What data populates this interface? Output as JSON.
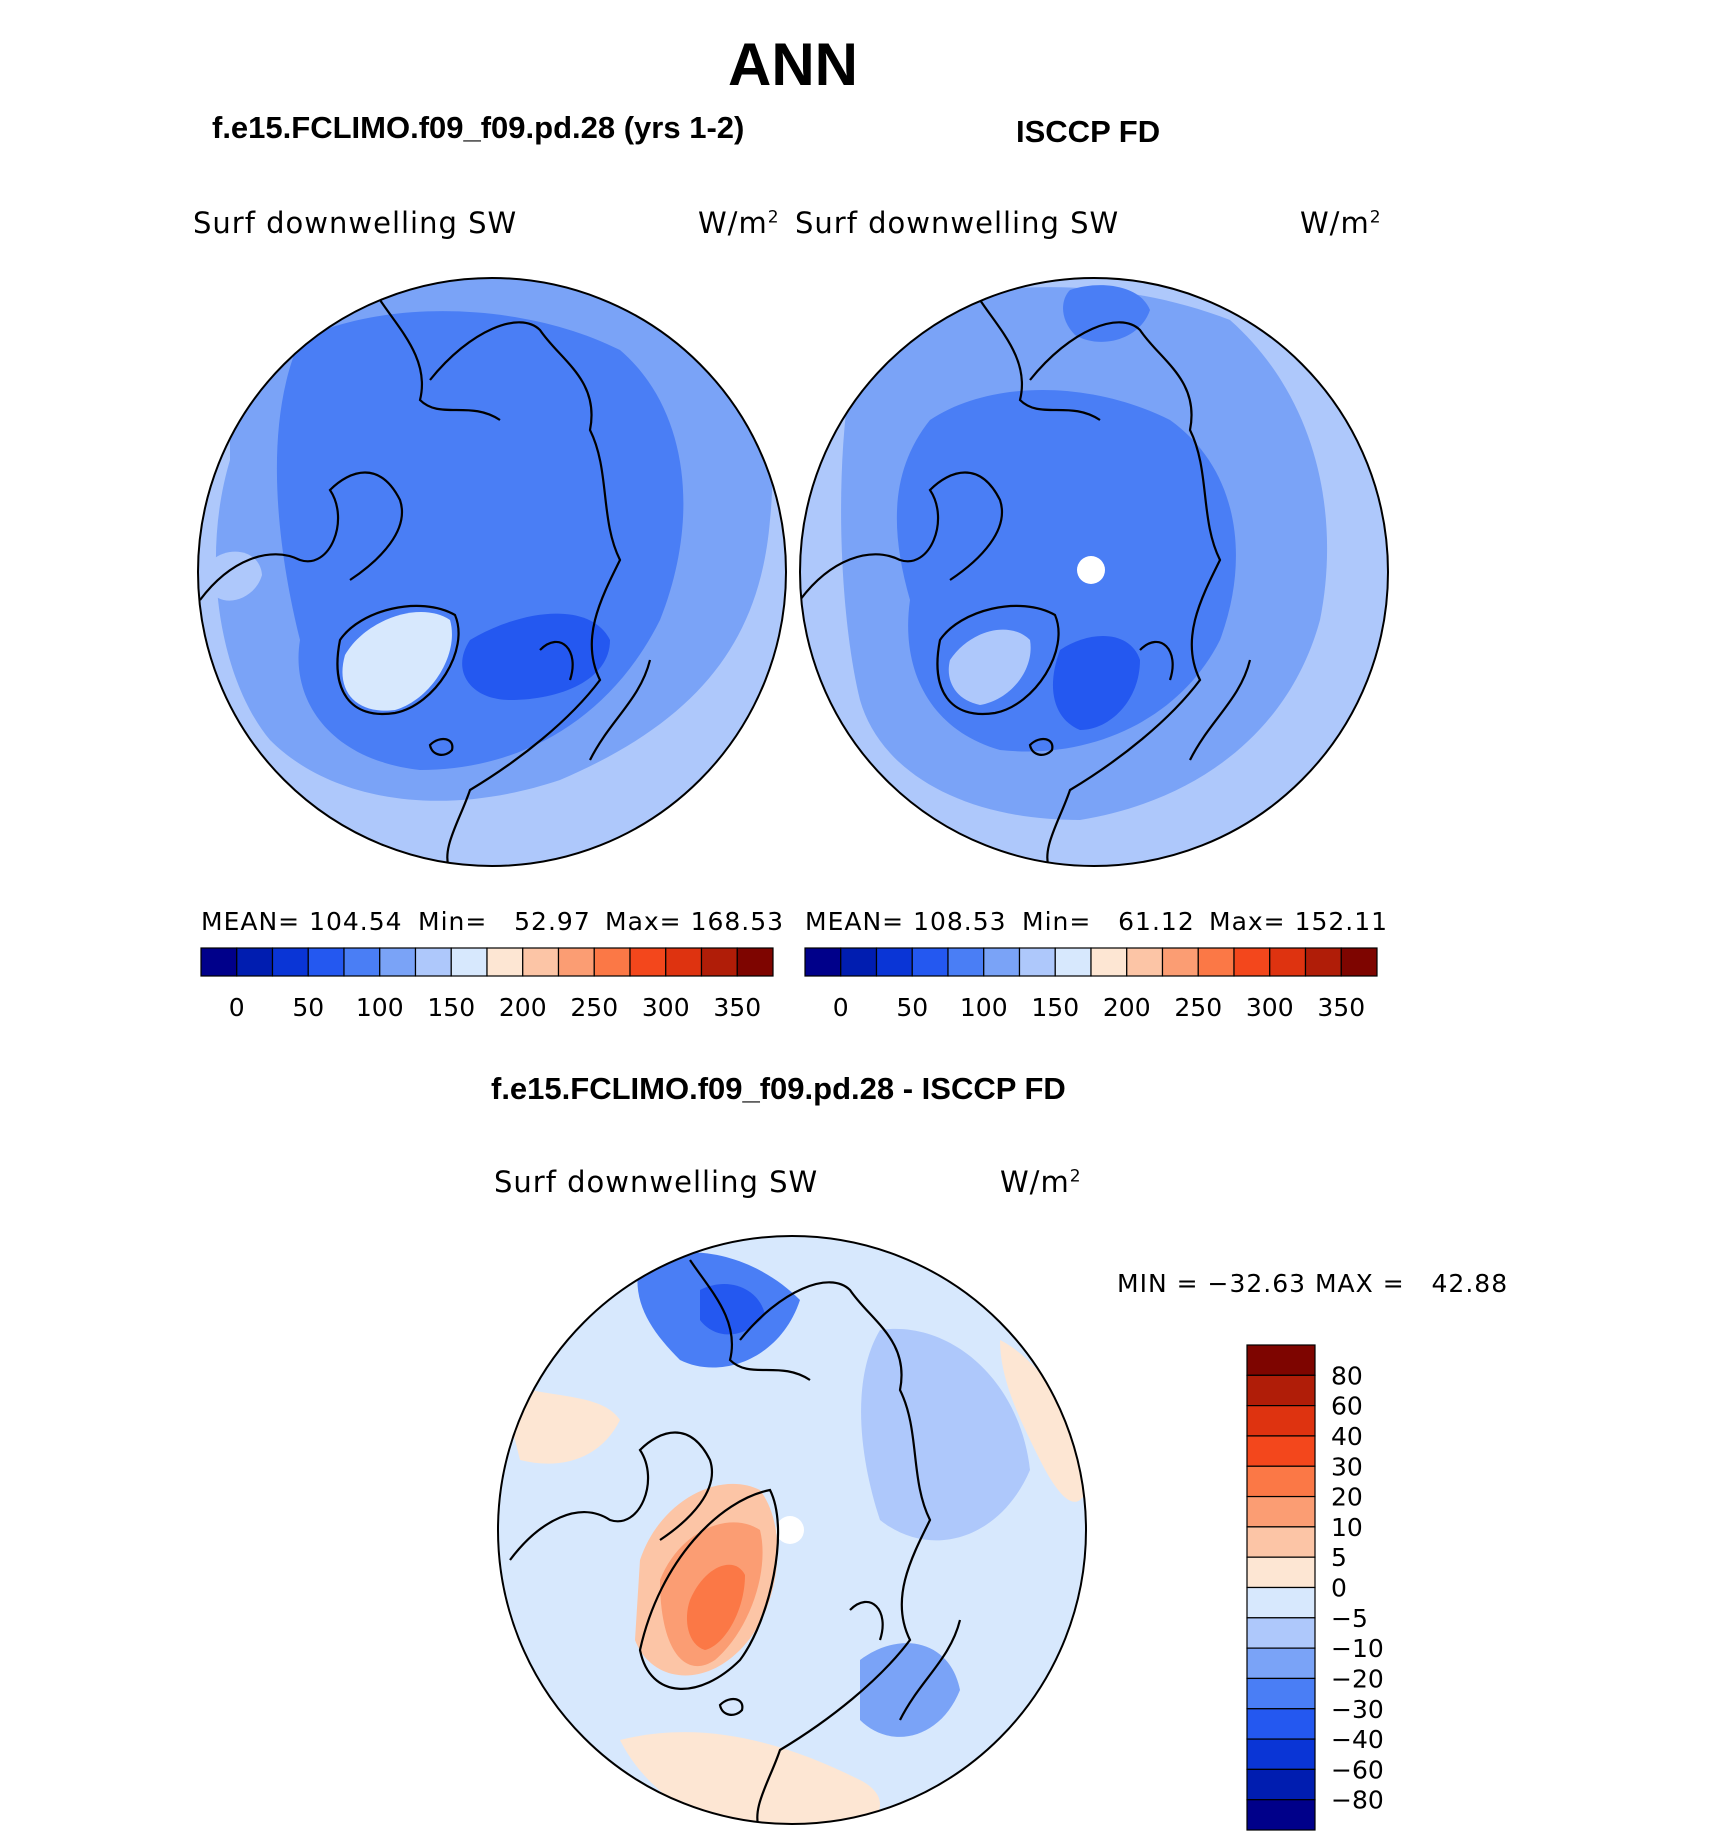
{
  "title": "ANN",
  "colors": {
    "d1": "#00008a",
    "d2": "#001db0",
    "d3": "#0a35d6",
    "d4": "#2458f0",
    "d5": "#4a7ef5",
    "d6": "#7aa3f7",
    "d7": "#aec8fb",
    "d8": "#d7e8fd",
    "w1": "#fde6d3",
    "w2": "#fcc5a6",
    "w3": "#fb9d73",
    "w4": "#fb7846",
    "w5": "#f3471c",
    "w6": "#de3310",
    "w7": "#b01d08",
    "w8": "#7e0500",
    "missing": "#ffffff"
  },
  "panels": [
    {
      "heading": "f.e15.FCLIMO.f09_f09.pd.28 (yrs 1-2)",
      "variable": "Surf downwelling SW",
      "units": "W/m",
      "units_sup": "2",
      "stats": {
        "mean_label": "MEAN=",
        "mean": "104.54",
        "min_label": "Min=",
        "min": "52.97",
        "max_label": "Max=",
        "max": "168.53"
      },
      "map": "Arctic polar stereographic, annual mean surface downwelling SW"
    },
    {
      "heading": "ISCCP FD",
      "variable": "Surf downwelling SW",
      "units": "W/m",
      "units_sup": "2",
      "stats": {
        "mean_label": "MEAN=",
        "mean": "108.53",
        "min_label": "Min=",
        "min": "61.12",
        "max_label": "Max=",
        "max": "152.11"
      },
      "map": "Arctic polar stereographic, pole hole shown as missing"
    },
    {
      "heading": "f.e15.FCLIMO.f09_f09.pd.28 - ISCCP FD",
      "variable": "Surf downwelling SW",
      "units": "W/m",
      "units_sup": "2",
      "stats": {
        "min_label": "MIN =",
        "min": "−32.63",
        "max_label": "MAX =",
        "max": "42.88"
      },
      "map": "Arctic difference field (model minus observations)"
    }
  ],
  "colorbar_top": {
    "orientation": "horizontal",
    "tick_labels": [
      "0",
      "50",
      "100",
      "150",
      "200",
      "250",
      "300",
      "350"
    ],
    "colors": [
      "d1",
      "d2",
      "d3",
      "d4",
      "d5",
      "d6",
      "d7",
      "d8",
      "w1",
      "w2",
      "w3",
      "w4",
      "w5",
      "w6",
      "w7",
      "w8"
    ]
  },
  "colorbar_diff": {
    "orientation": "vertical",
    "tick_labels": [
      "80",
      "60",
      "40",
      "30",
      "20",
      "10",
      "5",
      "0",
      "−5",
      "−10",
      "−20",
      "−30",
      "−40",
      "−60",
      "−80"
    ],
    "colors_top_to_bottom": [
      "w8",
      "w7",
      "w6",
      "w5",
      "w4",
      "w3",
      "w2",
      "w1",
      "d8",
      "d7",
      "d6",
      "d5",
      "d4",
      "d3",
      "d2",
      "d1"
    ]
  }
}
